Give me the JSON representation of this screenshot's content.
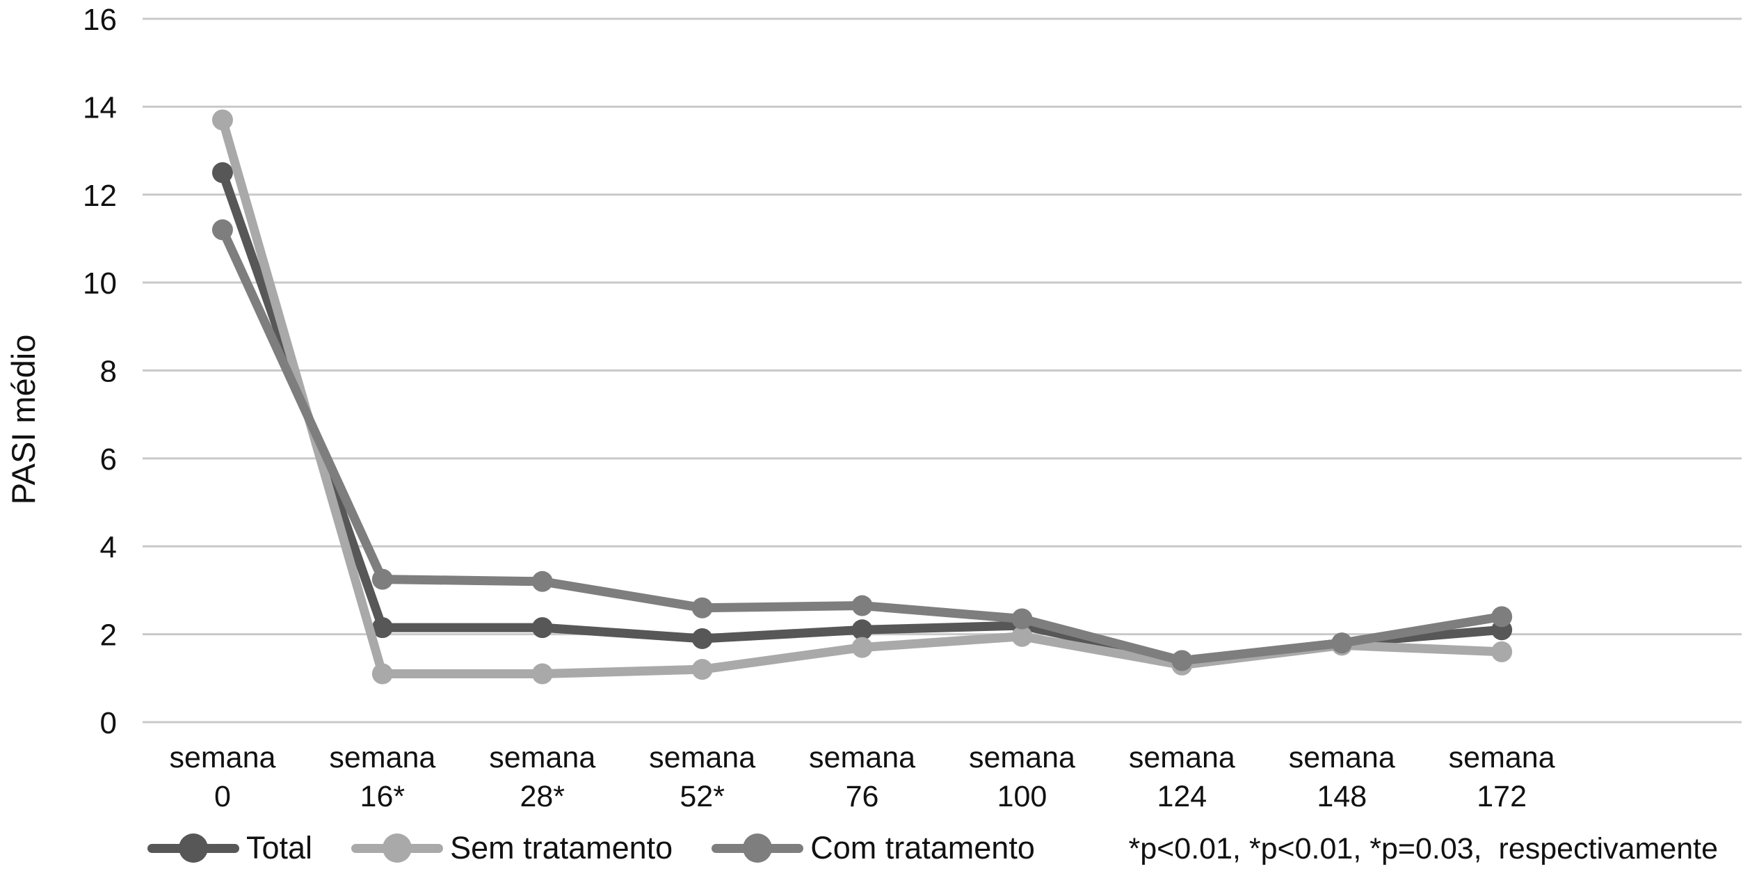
{
  "chart": {
    "ylabel": "PASI médio"
  },
  "chart_data": {
    "type": "line",
    "title": "",
    "xlabel": "",
    "ylabel": "PASI médio",
    "categories": [
      "semana 0",
      "semana 16*",
      "semana 28*",
      "semana 52*",
      "semana 76",
      "semana 100",
      "semana 124",
      "semana 148",
      "semana 172"
    ],
    "series": [
      {
        "name": "Total",
        "color": "#575757",
        "values": [
          12.5,
          2.15,
          2.15,
          1.9,
          2.1,
          2.2,
          1.4,
          1.8,
          2.1
        ]
      },
      {
        "name": "Sem tratamento",
        "color": "#a9a9a9",
        "values": [
          13.7,
          1.1,
          1.1,
          1.2,
          1.7,
          1.95,
          1.3,
          1.75,
          1.6
        ]
      },
      {
        "name": "Com tratamento",
        "color": "#7e7e7e",
        "values": [
          11.2,
          3.25,
          3.2,
          2.6,
          2.65,
          2.35,
          1.4,
          1.8,
          2.4
        ]
      }
    ],
    "ylim": [
      0,
      16
    ],
    "ytick_step": 2,
    "ytick_labels": [
      "0",
      "2",
      "4",
      "6",
      "8",
      "10",
      "12",
      "14",
      "16"
    ],
    "grid": true,
    "gridline_color": "#c9c9c9",
    "marker": "circle",
    "legend_position": "bottom",
    "annotation": "*p<0.01, *p<0.01, *p=0.03,  respectivamente"
  }
}
